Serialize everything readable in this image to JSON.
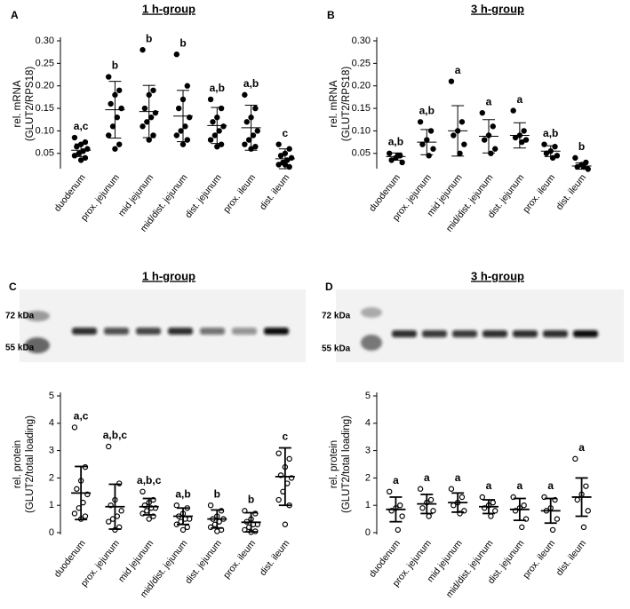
{
  "chart_data": [
    {
      "type": "dotplot",
      "panel": "A",
      "title": "1 h-group",
      "ylabel": [
        "rel. mRNA",
        "(GLUT2/RPS18)"
      ],
      "categories": [
        "duodenum",
        "prox. jejunum",
        "mid jejunum",
        "mid/dist. jejunum",
        "dist. jejunum",
        "prox. ileum",
        "dist. ileum"
      ],
      "points": [
        [
          0.085,
          0.075,
          0.07,
          0.065,
          0.06,
          0.055,
          0.05,
          0.045,
          0.04,
          0.035
        ],
        [
          0.22,
          0.19,
          0.18,
          0.16,
          0.15,
          0.13,
          0.11,
          0.09,
          0.07,
          0.06
        ],
        [
          0.28,
          0.19,
          0.18,
          0.15,
          0.14,
          0.13,
          0.12,
          0.11,
          0.09,
          0.08
        ],
        [
          0.27,
          0.2,
          0.17,
          0.15,
          0.13,
          0.11,
          0.1,
          0.09,
          0.08,
          0.07
        ],
        [
          0.17,
          0.15,
          0.13,
          0.12,
          0.11,
          0.1,
          0.09,
          0.08,
          0.07,
          0.065
        ],
        [
          0.18,
          0.15,
          0.13,
          0.12,
          0.1,
          0.09,
          0.08,
          0.07,
          0.065,
          0.06
        ],
        [
          0.07,
          0.06,
          0.05,
          0.045,
          0.04,
          0.035,
          0.03,
          0.025,
          0.02,
          0.025
        ]
      ],
      "means": [
        0.057,
        0.147,
        0.143,
        0.133,
        0.112,
        0.107,
        0.038
      ],
      "sd": [
        0.014,
        0.063,
        0.058,
        0.057,
        0.04,
        0.05,
        0.022
      ],
      "letters": [
        "a,c",
        "b",
        "b",
        "b",
        "a,b",
        "a,b",
        "c"
      ],
      "ylim": [
        0.02,
        0.3
      ],
      "yticks": [
        0.05,
        {
          "value": 0.1,
          "label": "0.10"
        },
        0.15,
        {
          "value": 0.2,
          "label": "0.20"
        },
        0.25,
        {
          "value": 0.3,
          "label": "0.30"
        }
      ],
      "open_markers": false
    },
    {
      "type": "dotplot",
      "panel": "B",
      "title": "3 h-group",
      "ylabel": [
        "rel. mRNA",
        "(GLUT2/RPS18)"
      ],
      "categories": [
        "duodenum",
        "prox. jejunum",
        "mid jejunum",
        "mid/dist. jejunum",
        "dist. jejunum",
        "prox. ileum",
        "dist. ileum"
      ],
      "points": [
        [
          0.05,
          0.045,
          0.04,
          0.035,
          0.03,
          0.045
        ],
        [
          0.12,
          0.1,
          0.08,
          0.07,
          0.06,
          0.045
        ],
        [
          0.21,
          0.12,
          0.1,
          0.09,
          0.07,
          0.05
        ],
        [
          0.14,
          0.11,
          0.09,
          0.08,
          0.06,
          0.05
        ],
        [
          0.145,
          0.1,
          0.09,
          0.085,
          0.08,
          0.075
        ],
        [
          0.07,
          0.065,
          0.055,
          0.05,
          0.045,
          0.04
        ],
        [
          0.04,
          0.03,
          0.025,
          0.02,
          0.015,
          0.02
        ]
      ],
      "means": [
        0.043,
        0.075,
        0.1,
        0.088,
        0.09,
        0.055,
        0.022
      ],
      "sd": [
        0.008,
        0.028,
        0.056,
        0.037,
        0.028,
        0.012,
        0.007
      ],
      "letters": [
        "a,b",
        "a,b",
        "a",
        "a",
        "a",
        "a,b",
        "b"
      ],
      "ylim": [
        0.02,
        0.3
      ],
      "yticks": [
        0.05,
        {
          "value": 0.1,
          "label": "0.10"
        },
        0.15,
        {
          "value": 0.2,
          "label": "0.20"
        },
        0.25,
        {
          "value": 0.3,
          "label": "0.30"
        }
      ],
      "open_markers": false
    },
    {
      "type": "dotplot",
      "panel": "C",
      "title": "1 h-group",
      "blot_markers": [
        "72 kDa",
        "55 kDa"
      ],
      "ylabel": [
        "rel. protein",
        "(GLUT2/total loading)"
      ],
      "categories": [
        "duodenum",
        "prox. jejunum",
        "mid jejunum",
        "mid/dist. jejunum",
        "dist. jejunum",
        "prox. ileum",
        "dist. ileum"
      ],
      "points": [
        [
          3.85,
          2.4,
          1.9,
          1.6,
          1.4,
          1.1,
          0.9,
          0.7,
          0.6,
          0.5
        ],
        [
          3.15,
          1.8,
          1.2,
          1.0,
          0.8,
          0.6,
          0.5,
          0.4,
          0.2,
          0.1
        ],
        [
          1.5,
          1.2,
          1.1,
          1.0,
          0.9,
          0.9,
          0.8,
          0.7,
          0.6,
          0.5
        ],
        [
          1.0,
          0.9,
          0.7,
          0.6,
          0.5,
          0.5,
          0.4,
          0.3,
          0.2,
          0.1
        ],
        [
          1.0,
          0.8,
          0.6,
          0.5,
          0.5,
          0.4,
          0.3,
          0.2,
          0.1,
          0.05
        ],
        [
          0.8,
          0.7,
          0.5,
          0.4,
          0.3,
          0.3,
          0.2,
          0.1,
          0.05,
          0.02
        ],
        [
          2.9,
          2.7,
          2.4,
          2.1,
          2.0,
          1.8,
          1.5,
          1.2,
          1.0,
          0.3
        ]
      ],
      "means": [
        1.45,
        0.95,
        0.95,
        0.6,
        0.5,
        0.38,
        2.05
      ],
      "sd": [
        0.97,
        0.82,
        0.3,
        0.3,
        0.33,
        0.35,
        1.05
      ],
      "letters": [
        "a,c",
        "a,b,c",
        "a,b,c",
        "a,b",
        "b",
        "b",
        "c"
      ],
      "ylim": [
        0,
        5
      ],
      "yticks": [
        0,
        1,
        2,
        3,
        4,
        5
      ],
      "open_markers": true
    },
    {
      "type": "dotplot",
      "panel": "D",
      "title": "3 h-group",
      "blot_markers": [
        "72 kDa",
        "55 kDa"
      ],
      "ylabel": [
        "rel. protein",
        "(GLUT2/total loading)"
      ],
      "categories": [
        "duodenum",
        "prox. jejunum",
        "mid jejunum",
        "mid/dist. jejunum",
        "dist. jejunum",
        "prox. ileum",
        "dist. ileum"
      ],
      "points": [
        [
          1.5,
          1.0,
          0.9,
          0.8,
          0.6,
          0.1
        ],
        [
          1.6,
          1.2,
          1.1,
          0.9,
          0.8,
          0.6
        ],
        [
          1.6,
          1.3,
          1.1,
          1.0,
          0.8,
          0.7
        ],
        [
          1.3,
          1.1,
          1.0,
          0.9,
          0.8,
          0.6
        ],
        [
          1.3,
          1.0,
          0.9,
          0.8,
          0.5,
          0.2
        ],
        [
          1.3,
          1.2,
          0.9,
          0.8,
          0.5,
          0.1
        ],
        [
          2.7,
          1.7,
          1.4,
          1.2,
          0.8,
          0.2
        ]
      ],
      "means": [
        0.85,
        1.05,
        1.1,
        0.95,
        0.85,
        0.8,
        1.3
      ],
      "sd": [
        0.45,
        0.35,
        0.35,
        0.25,
        0.4,
        0.45,
        0.7
      ],
      "letters": [
        "a",
        "a",
        "a",
        "a",
        "a",
        "a",
        "a"
      ],
      "ylim": [
        0,
        5
      ],
      "yticks": [
        0,
        1,
        2,
        3,
        4,
        5
      ],
      "open_markers": true
    }
  ]
}
